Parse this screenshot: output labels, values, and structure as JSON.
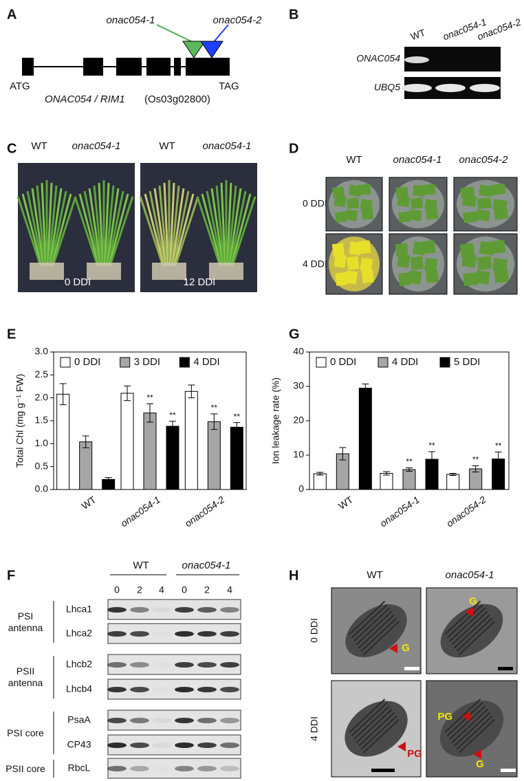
{
  "panels": {
    "A": {
      "label": "A",
      "insertions": [
        "onac054-1",
        "onac054-2"
      ],
      "start": "ATG",
      "stop": "TAG",
      "gene": "ONAC054 / RIM1",
      "locus": "(Os03g02800)"
    },
    "B": {
      "label": "B",
      "columns": [
        "WT",
        "onac054-1",
        "onac054-2"
      ],
      "rows": [
        "ONAC054",
        "UBQ5"
      ]
    },
    "C": {
      "label": "C",
      "headers": [
        "WT",
        "onac054-1",
        "WT",
        "onac054-1"
      ],
      "timepoints": [
        "0 DDI",
        "12 DDI"
      ]
    },
    "D": {
      "label": "D",
      "columns": [
        "WT",
        "onac054-1",
        "onac054-2"
      ],
      "rows": [
        "0 DDI",
        "4 DDI"
      ]
    },
    "F": {
      "label": "F",
      "groups": [
        "WT",
        "onac054-1"
      ],
      "lanes": [
        0,
        2,
        4,
        0,
        2,
        4
      ],
      "complexes": [
        {
          "name": "PSI antenna",
          "proteins": [
            "Lhca1",
            "Lhca2"
          ]
        },
        {
          "name": "PSII antenna",
          "proteins": [
            "Lhcb2",
            "Lhcb4"
          ]
        },
        {
          "name": "PSI core",
          "proteins": [
            "PsaA",
            "CP43"
          ]
        },
        {
          "name": "PSII core",
          "proteins": [
            "RbcL"
          ]
        }
      ]
    },
    "H": {
      "label": "H",
      "columns": [
        "WT",
        "onac054-1"
      ],
      "rows": [
        "0 DDI",
        "4 DDI"
      ],
      "markers": [
        "G",
        "G",
        "PG",
        "PG",
        "G"
      ]
    }
  },
  "chart_data": [
    {
      "type": "bar",
      "panel": "E",
      "ylabel": "Total Chl (mg g⁻¹ FW)",
      "categories": [
        "WT",
        "onac054-1",
        "onac054-2"
      ],
      "series": [
        {
          "name": "0 DDI",
          "color": "#ffffff",
          "values": [
            2.08,
            2.1,
            2.14
          ],
          "errors": [
            0.23,
            0.16,
            0.14
          ],
          "significance": [
            null,
            null,
            null
          ]
        },
        {
          "name": "3 DDI",
          "color": "#a6a6a6",
          "values": [
            1.04,
            1.67,
            1.48
          ],
          "errors": [
            0.13,
            0.2,
            0.17
          ],
          "significance": [
            null,
            "**",
            "**"
          ]
        },
        {
          "name": "4 DDI",
          "color": "#000000",
          "values": [
            0.22,
            1.38,
            1.36
          ],
          "errors": [
            0.04,
            0.11,
            0.1
          ],
          "significance": [
            null,
            "**",
            "**"
          ]
        }
      ],
      "ylim": [
        0,
        3
      ],
      "yticks": [
        {
          "value": 0,
          "label": "0.0"
        },
        0.5,
        {
          "value": 1,
          "label": "1.0"
        },
        1.5,
        {
          "value": 2,
          "label": "2.0"
        },
        2.5,
        {
          "value": 3,
          "label": "3.0"
        }
      ],
      "legend": "top"
    },
    {
      "type": "bar",
      "panel": "G",
      "ylabel": "Ion leakage rate (%)",
      "categories": [
        "WT",
        "onac054-1",
        "onac054-2"
      ],
      "series": [
        {
          "name": "0 DDI",
          "color": "#ffffff",
          "values": [
            4.6,
            4.7,
            4.4
          ],
          "errors": [
            0.4,
            0.5,
            0.3
          ],
          "significance": [
            null,
            null,
            null
          ]
        },
        {
          "name": "4 DDI",
          "color": "#a6a6a6",
          "values": [
            10.4,
            5.8,
            6.0
          ],
          "errors": [
            1.8,
            0.5,
            0.9
          ],
          "significance": [
            null,
            "**",
            "**"
          ]
        },
        {
          "name": "5 DDI",
          "color": "#000000",
          "values": [
            29.5,
            8.8,
            8.9
          ],
          "errors": [
            1.2,
            2.2,
            2.0
          ],
          "significance": [
            null,
            "**",
            "**"
          ]
        }
      ],
      "ylim": [
        0,
        40
      ],
      "yticks": [
        0,
        10,
        20,
        30,
        40
      ],
      "legend": "top"
    }
  ]
}
